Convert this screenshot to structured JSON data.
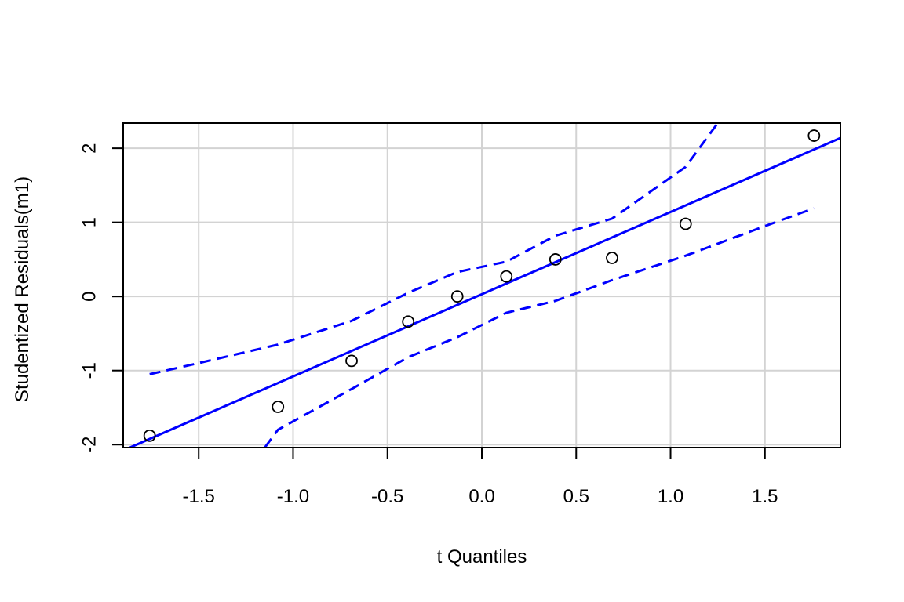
{
  "chart_data": {
    "type": "scatter",
    "title": "",
    "xlabel": "t Quantiles",
    "ylabel": "Studentized Residuals(m1)",
    "xlim": [
      -1.9,
      1.9
    ],
    "ylim": [
      -2.04,
      2.34
    ],
    "x_ticks": [
      -1.5,
      -1.0,
      -0.5,
      0.0,
      0.5,
      1.0,
      1.5
    ],
    "x_tick_labels": [
      "-1.5",
      "-1.0",
      "-0.5",
      "0.0",
      "0.5",
      "1.0",
      "1.5"
    ],
    "y_ticks": [
      -2,
      -1,
      0,
      1,
      2
    ],
    "y_tick_labels": [
      "-2",
      "-1",
      "0",
      "1",
      "2"
    ],
    "grid": true,
    "points": {
      "x": [
        -1.76,
        -1.08,
        -0.69,
        -0.39,
        -0.13,
        0.13,
        0.39,
        0.69,
        1.08,
        1.76
      ],
      "y": [
        -1.88,
        -1.49,
        -0.87,
        -0.34,
        0.0,
        0.27,
        0.5,
        0.52,
        0.98,
        2.17
      ]
    },
    "reference_line": {
      "intercept": 0.03,
      "slope": 1.11
    },
    "upper_band": {
      "x": [
        -1.76,
        -1.5,
        -1.08,
        -0.69,
        -0.39,
        -0.13,
        0.13,
        0.39,
        0.69,
        1.08,
        1.25
      ],
      "y": [
        -1.05,
        -0.9,
        -0.65,
        -0.33,
        0.05,
        0.33,
        0.47,
        0.82,
        1.05,
        1.75,
        2.34
      ]
    },
    "lower_band": {
      "x": [
        -1.15,
        -1.08,
        -0.69,
        -0.39,
        -0.13,
        0.13,
        0.39,
        0.69,
        1.08,
        1.5,
        1.76
      ],
      "y": [
        -2.04,
        -1.8,
        -1.25,
        -0.82,
        -0.55,
        -0.22,
        -0.06,
        0.22,
        0.55,
        0.95,
        1.19
      ]
    },
    "colors": {
      "line": "#0000ff",
      "points": "#000000",
      "grid": "#d3d3d3"
    }
  }
}
